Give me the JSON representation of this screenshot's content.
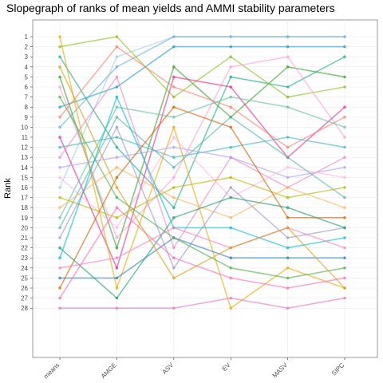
{
  "chart_data": {
    "type": "line",
    "title": "Slopegraph of ranks of mean yields and AMMI stability parameters",
    "xlabel": "",
    "ylabel": "Rank",
    "categories": [
      "means",
      "AMGE",
      "ASV",
      "EV",
      "MASV",
      "SIPC"
    ],
    "y_ticks": [
      "1",
      "2",
      "3",
      "4",
      "5",
      "6",
      "7",
      "8",
      "9",
      "10",
      "11",
      "12",
      "13",
      "14",
      "15",
      "16",
      "17",
      "18",
      "19",
      "20",
      "21",
      "22",
      "23",
      "24",
      "25",
      "26",
      "27",
      "28"
    ],
    "ylim": [
      28,
      1
    ],
    "y_reversed": true,
    "grid": true,
    "legend": "none",
    "series": [
      {
        "color": "#a6cee3",
        "values": [
          16,
          3,
          1,
          1,
          1,
          1
        ]
      },
      {
        "color": "#6baed6",
        "values": [
          10,
          4,
          1,
          1,
          1,
          1
        ]
      },
      {
        "color": "#1f9bc9",
        "values": [
          8,
          6,
          2,
          2,
          2,
          2
        ]
      },
      {
        "color": "#1aae8c",
        "values": [
          3,
          12,
          18,
          5,
          6,
          3
        ]
      },
      {
        "color": "#33a02c",
        "values": [
          5,
          22,
          4,
          9,
          4,
          5
        ]
      },
      {
        "color": "#8fbc1c",
        "values": [
          2,
          1,
          7,
          3,
          7,
          6
        ]
      },
      {
        "color": "#ff9ed6",
        "values": [
          6,
          21,
          15,
          4,
          3,
          11
        ]
      },
      {
        "color": "#e7298a",
        "values": [
          11,
          24,
          5,
          6,
          13,
          8
        ]
      },
      {
        "color": "#fb8072",
        "values": [
          9,
          2,
          6,
          8,
          12,
          9
        ]
      },
      {
        "color": "#e6ab02",
        "values": [
          1,
          26,
          10,
          28,
          24,
          26
        ]
      },
      {
        "color": "#66c2a5",
        "values": [
          19,
          8,
          9,
          7,
          8,
          10
        ]
      },
      {
        "color": "#41b6c4",
        "values": [
          12,
          11,
          13,
          12,
          11,
          12
        ]
      },
      {
        "color": "#e78ac3",
        "values": [
          13,
          5,
          22,
          13,
          16,
          13
        ]
      },
      {
        "color": "#b3a2f0",
        "values": [
          14,
          13,
          12,
          13,
          15,
          14
        ]
      },
      {
        "color": "#ffb6e0",
        "values": [
          15,
          20,
          11,
          17,
          14,
          15
        ]
      },
      {
        "color": "#5ab4ac",
        "values": [
          20,
          9,
          14,
          9,
          13,
          17
        ]
      },
      {
        "color": "#b8b800",
        "values": [
          17,
          19,
          16,
          15,
          17,
          16
        ]
      },
      {
        "color": "#fdb462",
        "values": [
          18,
          14,
          17,
          19,
          16,
          18
        ]
      },
      {
        "color": "#d95f02",
        "values": [
          26,
          15,
          8,
          10,
          19,
          19
        ]
      },
      {
        "color": "#9e9ac8",
        "values": [
          21,
          10,
          24,
          16,
          21,
          20
        ]
      },
      {
        "color": "#1b9e77",
        "values": [
          22,
          27,
          19,
          17,
          18,
          20
        ]
      },
      {
        "color": "#00bcd4",
        "values": [
          23,
          7,
          20,
          20,
          22,
          21
        ]
      },
      {
        "color": "#f781bf",
        "values": [
          24,
          23,
          20,
          22,
          20,
          22
        ]
      },
      {
        "color": "#2c7fb8",
        "values": [
          25,
          25,
          21,
          23,
          23,
          23
        ]
      },
      {
        "color": "#4daf4a",
        "values": [
          7,
          17,
          21,
          24,
          25,
          24
        ]
      },
      {
        "color": "#ff69b4",
        "values": [
          27,
          18,
          23,
          25,
          26,
          25
        ]
      },
      {
        "color": "#d4a017",
        "values": [
          4,
          16,
          25,
          22,
          20,
          26
        ]
      },
      {
        "color": "#e377c2",
        "values": [
          28,
          28,
          28,
          27,
          28,
          27
        ]
      }
    ]
  }
}
